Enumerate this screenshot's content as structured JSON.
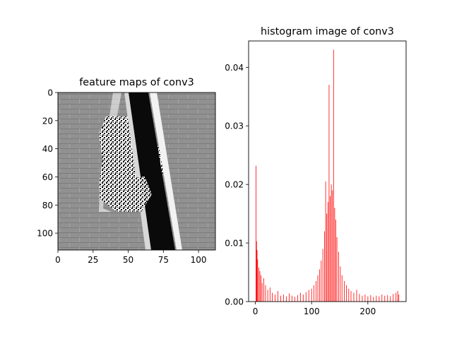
{
  "chart_data": [
    {
      "type": "heatmap",
      "title": "feature maps of conv3",
      "xlabel": "",
      "ylabel": "",
      "xlim": [
        0,
        112
      ],
      "ylim": [
        112,
        0
      ],
      "colormap": "gray",
      "x_ticks": [
        0,
        25,
        50,
        75,
        100
      ],
      "y_ticks": [
        0,
        20,
        40,
        60,
        80,
        100
      ],
      "grid": false,
      "legend": "none"
    },
    {
      "type": "bar",
      "title": "histogram image of conv3",
      "xlabel": "",
      "ylabel": "",
      "xlim": [
        -12,
        268
      ],
      "ylim": [
        0,
        0.0445
      ],
      "x_ticks": [
        0,
        100,
        200
      ],
      "y_ticks": [
        0.0,
        0.01,
        0.02,
        0.03,
        0.04
      ],
      "y_tick_labels": [
        "0.00",
        "0.01",
        "0.02",
        "0.03",
        "0.04"
      ],
      "bar_color": "#ff0000",
      "grid": false,
      "legend": "none",
      "bins": [
        {
          "x": 1,
          "y": 0.0232
        },
        {
          "x": 2,
          "y": 0.0103
        },
        {
          "x": 3,
          "y": 0.0088
        },
        {
          "x": 4,
          "y": 0.0072
        },
        {
          "x": 6,
          "y": 0.0058
        },
        {
          "x": 8,
          "y": 0.0052
        },
        {
          "x": 10,
          "y": 0.0045
        },
        {
          "x": 12,
          "y": 0.0032
        },
        {
          "x": 15,
          "y": 0.004
        },
        {
          "x": 18,
          "y": 0.0028
        },
        {
          "x": 22,
          "y": 0.002
        },
        {
          "x": 26,
          "y": 0.0024
        },
        {
          "x": 30,
          "y": 0.0015
        },
        {
          "x": 35,
          "y": 0.0012
        },
        {
          "x": 40,
          "y": 0.0018
        },
        {
          "x": 45,
          "y": 0.001
        },
        {
          "x": 50,
          "y": 0.0012
        },
        {
          "x": 55,
          "y": 0.0009
        },
        {
          "x": 60,
          "y": 0.0014
        },
        {
          "x": 65,
          "y": 0.001
        },
        {
          "x": 70,
          "y": 0.0008
        },
        {
          "x": 75,
          "y": 0.0011
        },
        {
          "x": 80,
          "y": 0.0015
        },
        {
          "x": 85,
          "y": 0.0012
        },
        {
          "x": 90,
          "y": 0.0016
        },
        {
          "x": 95,
          "y": 0.002
        },
        {
          "x": 100,
          "y": 0.0022
        },
        {
          "x": 104,
          "y": 0.0028
        },
        {
          "x": 108,
          "y": 0.0035
        },
        {
          "x": 111,
          "y": 0.0045
        },
        {
          "x": 114,
          "y": 0.0055
        },
        {
          "x": 117,
          "y": 0.007
        },
        {
          "x": 120,
          "y": 0.009
        },
        {
          "x": 123,
          "y": 0.012
        },
        {
          "x": 125,
          "y": 0.0205
        },
        {
          "x": 127,
          "y": 0.015
        },
        {
          "x": 129,
          "y": 0.017
        },
        {
          "x": 131,
          "y": 0.037
        },
        {
          "x": 133,
          "y": 0.018
        },
        {
          "x": 135,
          "y": 0.02
        },
        {
          "x": 137,
          "y": 0.019
        },
        {
          "x": 139,
          "y": 0.043
        },
        {
          "x": 141,
          "y": 0.016
        },
        {
          "x": 143,
          "y": 0.014
        },
        {
          "x": 145,
          "y": 0.011
        },
        {
          "x": 148,
          "y": 0.0085
        },
        {
          "x": 151,
          "y": 0.006
        },
        {
          "x": 154,
          "y": 0.0045
        },
        {
          "x": 158,
          "y": 0.0035
        },
        {
          "x": 162,
          "y": 0.0028
        },
        {
          "x": 166,
          "y": 0.0022
        },
        {
          "x": 170,
          "y": 0.0018
        },
        {
          "x": 175,
          "y": 0.0015
        },
        {
          "x": 180,
          "y": 0.002
        },
        {
          "x": 185,
          "y": 0.0013
        },
        {
          "x": 190,
          "y": 0.001
        },
        {
          "x": 195,
          "y": 0.0012
        },
        {
          "x": 200,
          "y": 0.0009
        },
        {
          "x": 205,
          "y": 0.0011
        },
        {
          "x": 210,
          "y": 0.0008
        },
        {
          "x": 215,
          "y": 0.001
        },
        {
          "x": 220,
          "y": 0.0009
        },
        {
          "x": 225,
          "y": 0.0012
        },
        {
          "x": 230,
          "y": 0.001
        },
        {
          "x": 235,
          "y": 0.0011
        },
        {
          "x": 240,
          "y": 0.0009
        },
        {
          "x": 245,
          "y": 0.0013
        },
        {
          "x": 250,
          "y": 0.0015
        },
        {
          "x": 253,
          "y": 0.0018
        },
        {
          "x": 255,
          "y": 0.0012
        }
      ]
    }
  ]
}
